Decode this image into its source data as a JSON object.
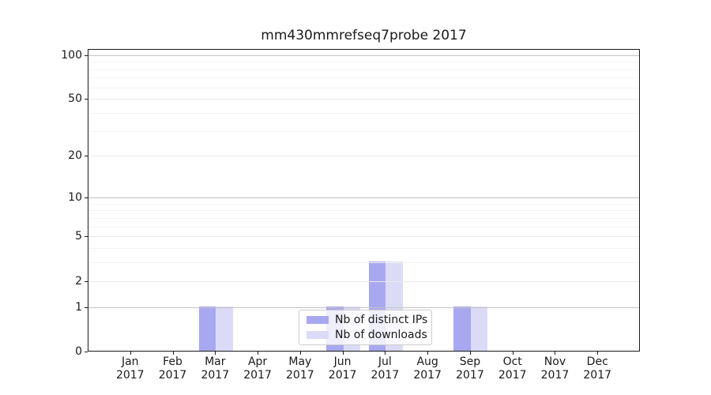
{
  "chart_data": {
    "type": "bar",
    "title": "mm430mmrefseq7probe 2017",
    "categories": [
      "Jan",
      "Feb",
      "Mar",
      "Apr",
      "May",
      "Jun",
      "Jul",
      "Aug",
      "Sep",
      "Oct",
      "Nov",
      "Dec"
    ],
    "x_year": "2017",
    "series": [
      {
        "name": "Nb of distinct IPs",
        "color": "#a8a8f0",
        "values": [
          0,
          0,
          1,
          0,
          0,
          1,
          3,
          0,
          1,
          0,
          0,
          0
        ]
      },
      {
        "name": "Nb of downloads",
        "color": "#dbdbf8",
        "values": [
          0,
          0,
          1,
          0,
          0,
          1,
          3,
          0,
          1,
          0,
          0,
          0
        ]
      }
    ],
    "yscale": "log1p",
    "y_ticks": [
      100,
      50,
      20,
      10,
      5,
      2,
      1,
      0
    ],
    "ylim": [
      0,
      111
    ],
    "grid": "horizontal",
    "legend_position": "lower center",
    "colors": {
      "major_grid": "#c3c3c3",
      "mid_grid": "#e9e9e9",
      "minor_grid": "#f3f3f3",
      "spine": "#1a1a1a",
      "text": "#1a1a1a"
    }
  }
}
